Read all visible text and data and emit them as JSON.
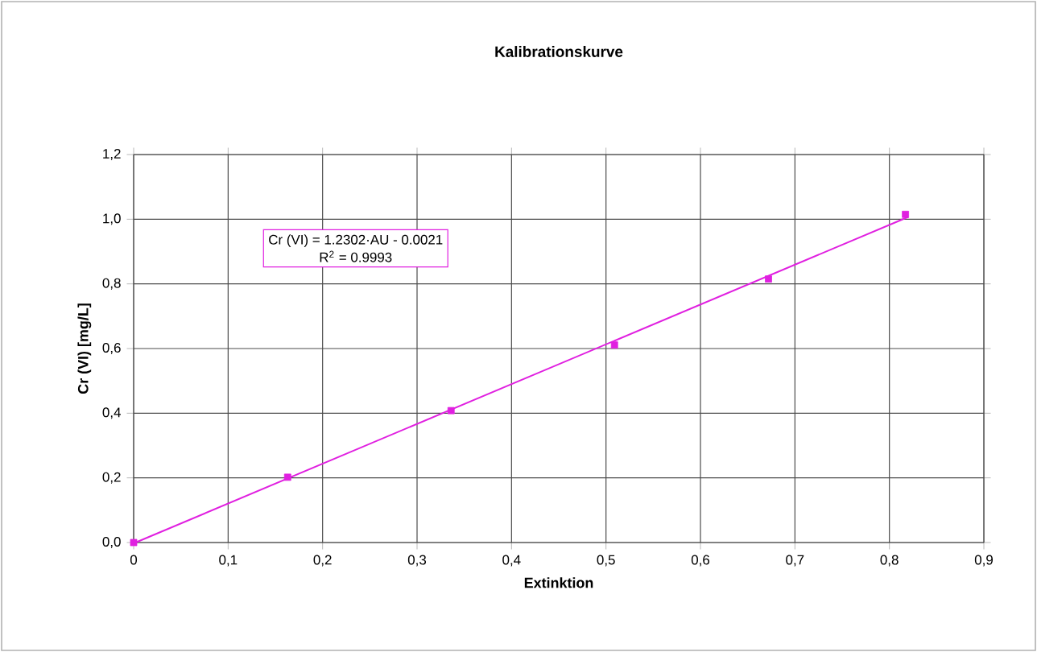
{
  "chart_data": {
    "type": "scatter",
    "title": "Kalibrationskurve",
    "xlabel": "Extinktion",
    "ylabel": "Cr (VI) [mg/L]",
    "annotations": [
      "Cr (VI) = 1.2302·AU - 0.0021",
      "R$^{2}$ = 0.9993"
    ],
    "series": [
      {
        "color": "#e020e0",
        "marker": "square",
        "x": [
          0,
          0.163,
          0.336,
          0.509,
          0.672,
          0.817
        ],
        "values": [
          0,
          0.202,
          0.408,
          0.611,
          0.815,
          1.015
        ]
      },
      {
        "type": "line",
        "color": "#e020e0",
        "marker": "none",
        "line_style": "solid",
        "x": [
          0.002,
          0.82
        ],
        "values": [
          0.0,
          1.007
        ]
      }
    ],
    "xlim": [
      0,
      0.9
    ],
    "ylim": [
      0,
      1.2
    ],
    "xticks": [
      0,
      {
        "value": 0.1,
        "label": "0,1"
      },
      {
        "value": 0.2,
        "label": "0,2"
      },
      {
        "value": 0.3,
        "label": "0,3"
      },
      {
        "value": 0.4,
        "label": "0,4"
      },
      {
        "value": 0.5,
        "label": "0,5"
      },
      {
        "value": 0.6,
        "label": "0,6"
      },
      {
        "value": 0.7,
        "label": "0,7"
      },
      {
        "value": 0.8,
        "label": "0,8"
      },
      {
        "value": 0.9,
        "label": "0,9"
      }
    ],
    "yticks": [
      {
        "value": 0,
        "label": "0,0"
      },
      {
        "value": 0.2,
        "label": "0,2"
      },
      {
        "value": 0.4,
        "label": "0,4"
      },
      {
        "value": 0.6,
        "label": "0,6"
      },
      {
        "value": 0.8,
        "label": "0,8"
      },
      {
        "value": 1.0,
        "label": "1,0"
      },
      {
        "value": 1.2,
        "label": "1,2"
      }
    ],
    "grid": true
  }
}
